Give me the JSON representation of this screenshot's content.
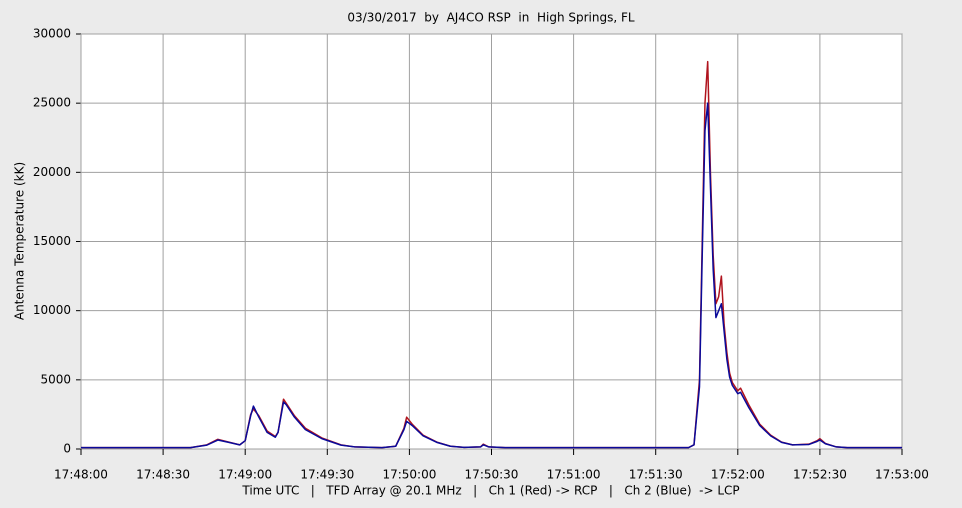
{
  "chart_data": {
    "type": "line",
    "title": "03/30/2017  by  AJ4CO RSP  in  High Springs, FL",
    "x_label": "Time UTC   |   TFD Array @ 20.1 MHz   |   Ch 1 (Red) -> RCP   |   Ch 2 (Blue)  -> LCP",
    "y_label": "Antenna Temperature (kK)",
    "x": [
      "17:48:00",
      "17:48:20",
      "17:48:40",
      "17:48:46",
      "17:48:50",
      "17:48:54",
      "17:48:58",
      "17:49:00",
      "17:49:02",
      "17:49:03",
      "17:49:05",
      "17:49:08",
      "17:49:11",
      "17:49:12",
      "17:49:14",
      "17:49:15",
      "17:49:18",
      "17:49:22",
      "17:49:28",
      "17:49:35",
      "17:49:40",
      "17:49:50",
      "17:49:55",
      "17:49:58",
      "17:49:59",
      "17:50:01",
      "17:50:05",
      "17:50:10",
      "17:50:15",
      "17:50:20",
      "17:50:26",
      "17:50:27",
      "17:50:29",
      "17:50:35",
      "17:51:00",
      "17:51:20",
      "17:51:42",
      "17:51:44",
      "17:51:46",
      "17:51:47",
      "17:51:48",
      "17:51:49",
      "17:51:50",
      "17:51:51",
      "17:51:52",
      "17:51:53",
      "17:51:54",
      "17:51:55",
      "17:51:56",
      "17:51:57",
      "17:51:58",
      "17:52:00",
      "17:52:01",
      "17:52:04",
      "17:52:08",
      "17:52:12",
      "17:52:16",
      "17:52:20",
      "17:52:26",
      "17:52:29",
      "17:52:30",
      "17:52:32",
      "17:52:36",
      "17:52:40",
      "17:53:00"
    ],
    "series": [
      {
        "color": "#b0141e",
        "values": [
          100,
          100,
          100,
          300,
          700,
          500,
          300,
          600,
          2500,
          2900,
          2400,
          1300,
          900,
          1200,
          3600,
          3300,
          2400,
          1500,
          800,
          300,
          150,
          100,
          200,
          1500,
          2300,
          1800,
          1000,
          500,
          200,
          120,
          150,
          350,
          150,
          100,
          100,
          100,
          100,
          300,
          5000,
          15000,
          25000,
          28000,
          20000,
          14000,
          10500,
          11000,
          12500,
          9000,
          7000,
          5500,
          4800,
          4200,
          4400,
          3200,
          1800,
          1000,
          500,
          300,
          350,
          600,
          750,
          400,
          150,
          100,
          100
        ]
      },
      {
        "color": "#0a0a9a",
        "values": [
          100,
          100,
          100,
          280,
          650,
          480,
          300,
          600,
          2400,
          3100,
          2300,
          1200,
          850,
          1200,
          3400,
          3200,
          2300,
          1400,
          750,
          280,
          150,
          100,
          200,
          1400,
          2000,
          1700,
          950,
          480,
          200,
          120,
          150,
          300,
          150,
          100,
          100,
          100,
          100,
          300,
          4500,
          14000,
          23000,
          25000,
          19000,
          13000,
          9500,
          10000,
          10500,
          8500,
          6500,
          5200,
          4600,
          4000,
          4100,
          3000,
          1700,
          950,
          480,
          300,
          330,
          550,
          650,
          380,
          150,
          100,
          100
        ]
      }
    ],
    "xlim": [
      "17:48:00",
      "17:53:00"
    ],
    "xticks": [
      "17:48:00",
      "17:48:30",
      "17:49:00",
      "17:49:30",
      "17:50:00",
      "17:50:30",
      "17:51:00",
      "17:51:30",
      "17:52:00",
      "17:52:30",
      "17:53:00"
    ],
    "ylim": [
      0,
      30000
    ],
    "yticks": [
      0,
      5000,
      10000,
      15000,
      20000,
      25000,
      30000
    ],
    "grid": true
  }
}
